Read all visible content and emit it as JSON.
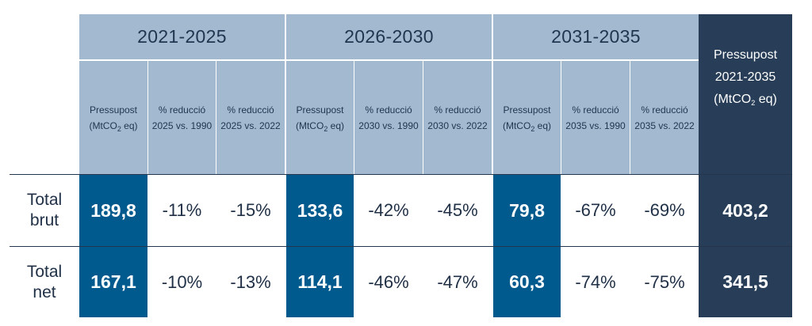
{
  "header": {
    "periods": [
      "2021-2025",
      "2026-2030",
      "2031-2035"
    ],
    "budget_label": "Pressupost",
    "budget_unit_pre": "(MtCO",
    "budget_unit_sub": "2",
    "budget_unit_post": " eq)",
    "reduction_label": "% reducció",
    "reduction_refs": [
      [
        "2025 vs. 1990",
        "2025 vs. 2022"
      ],
      [
        "2030 vs. 1990",
        "2030 vs. 2022"
      ],
      [
        "2035 vs. 1990",
        "2035 vs. 2022"
      ]
    ],
    "total": {
      "line1": "Pressupost",
      "line2": "2021-2035",
      "unit_pre": "(MtCO",
      "unit_sub": "2",
      "unit_post": " eq)"
    }
  },
  "rows": [
    {
      "label_line1": "Total",
      "label_line2": "brut",
      "periods": [
        {
          "budget": "189,8",
          "red_1990": "-11%",
          "red_2022": "-15%"
        },
        {
          "budget": "133,6",
          "red_1990": "-42%",
          "red_2022": "-45%"
        },
        {
          "budget": "79,8",
          "red_1990": "-67%",
          "red_2022": "-69%"
        }
      ],
      "total": "403,2"
    },
    {
      "label_line1": "Total",
      "label_line2": "net",
      "periods": [
        {
          "budget": "167,1",
          "red_1990": "-10%",
          "red_2022": "-13%"
        },
        {
          "budget": "114,1",
          "red_1990": "-46%",
          "red_2022": "-47%"
        },
        {
          "budget": "60,3",
          "red_1990": "-74%",
          "red_2022": "-75%"
        }
      ],
      "total": "341,5"
    }
  ]
}
